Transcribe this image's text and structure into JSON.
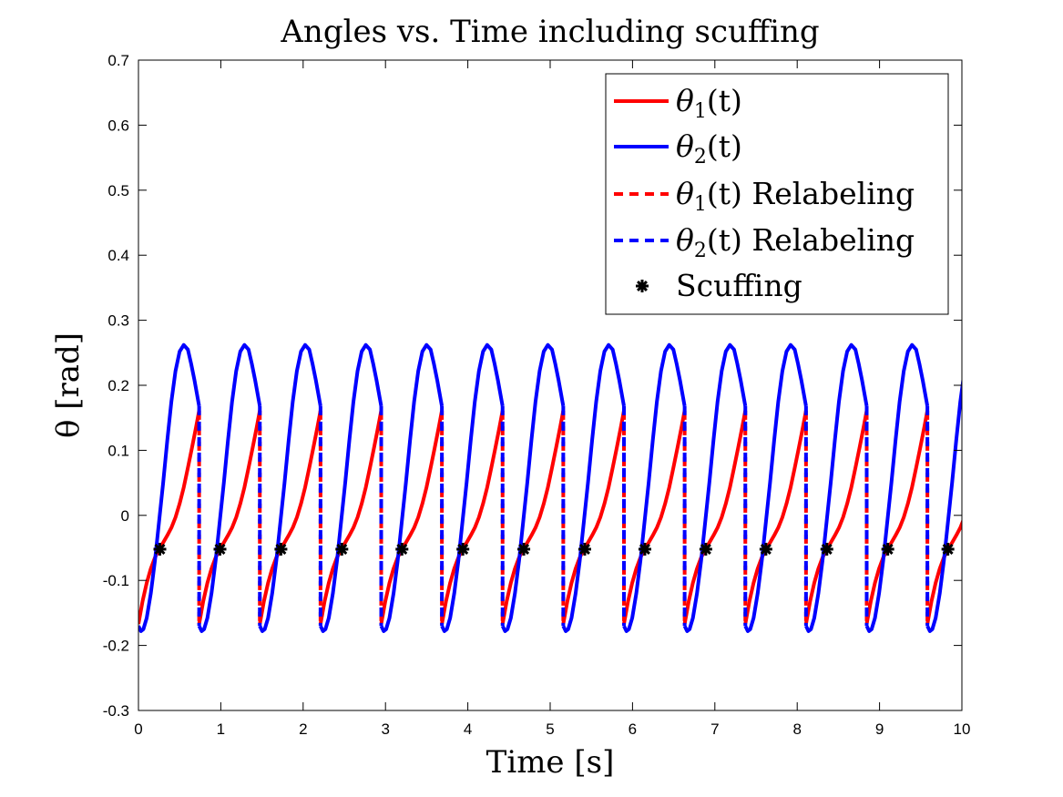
{
  "chart_data": {
    "type": "line",
    "title": "Angles vs. Time including scuffing",
    "xlabel": "Time [s]",
    "ylabel": "θ [rad]",
    "xlim": [
      0,
      10
    ],
    "ylim": [
      -0.3,
      0.7
    ],
    "xticks": [
      "0",
      "1",
      "2",
      "3",
      "4",
      "5",
      "6",
      "7",
      "8",
      "9",
      "10"
    ],
    "yticks": [
      "-0.3",
      "-0.2",
      "-0.1",
      "0",
      "0.1",
      "0.2",
      "0.3",
      "0.4",
      "0.5",
      "0.6",
      "0.7"
    ],
    "grid": false,
    "legend_position": "top-right",
    "period": 0.737,
    "series": [
      {
        "name": "θ1(t)",
        "sub": "1",
        "color": "#ff0000",
        "style": "solid",
        "one_step": {
          "x": [
            0,
            0.05,
            0.1,
            0.15,
            0.2,
            0.25,
            0.3,
            0.35,
            0.4,
            0.45,
            0.5,
            0.55,
            0.6,
            0.65,
            0.7,
            0.737
          ],
          "y": [
            -0.167,
            -0.132,
            -0.104,
            -0.082,
            -0.065,
            -0.052,
            -0.042,
            -0.031,
            -0.019,
            -0.003,
            0.018,
            0.043,
            0.073,
            0.104,
            0.136,
            0.161
          ]
        }
      },
      {
        "name": "θ2(t)",
        "sub": "2",
        "color": "#0000ff",
        "style": "solid",
        "one_step": {
          "x": [
            0,
            0.03,
            0.06,
            0.1,
            0.15,
            0.2,
            0.25,
            0.3,
            0.35,
            0.4,
            0.45,
            0.5,
            0.55,
            0.6,
            0.64,
            0.68,
            0.737
          ],
          "y": [
            -0.17,
            -0.178,
            -0.175,
            -0.158,
            -0.12,
            -0.07,
            -0.01,
            0.05,
            0.115,
            0.175,
            0.222,
            0.252,
            0.262,
            0.255,
            0.233,
            0.208,
            0.168
          ]
        }
      },
      {
        "name": "θ1(t) Relabeling",
        "sub": "1",
        "color": "#ff0000",
        "style": "dashed",
        "relabel": {
          "from": 0.161,
          "to": -0.167
        }
      },
      {
        "name": "θ2(t) Relabeling",
        "sub": "2",
        "color": "#0000ff",
        "style": "dashed",
        "relabel": {
          "from": 0.168,
          "to": -0.17
        }
      },
      {
        "name": "Scuffing",
        "color": "#000000",
        "style": "marker",
        "x": [
          0.26,
          0.99,
          1.73,
          2.47,
          3.2,
          3.94,
          4.68,
          5.42,
          6.15,
          6.89,
          7.62,
          8.36,
          9.1,
          9.83
        ],
        "y": [
          -0.052,
          -0.052,
          -0.052,
          -0.052,
          -0.052,
          -0.052,
          -0.052,
          -0.052,
          -0.052,
          -0.052,
          -0.052,
          -0.052,
          -0.052,
          -0.052
        ]
      }
    ]
  }
}
